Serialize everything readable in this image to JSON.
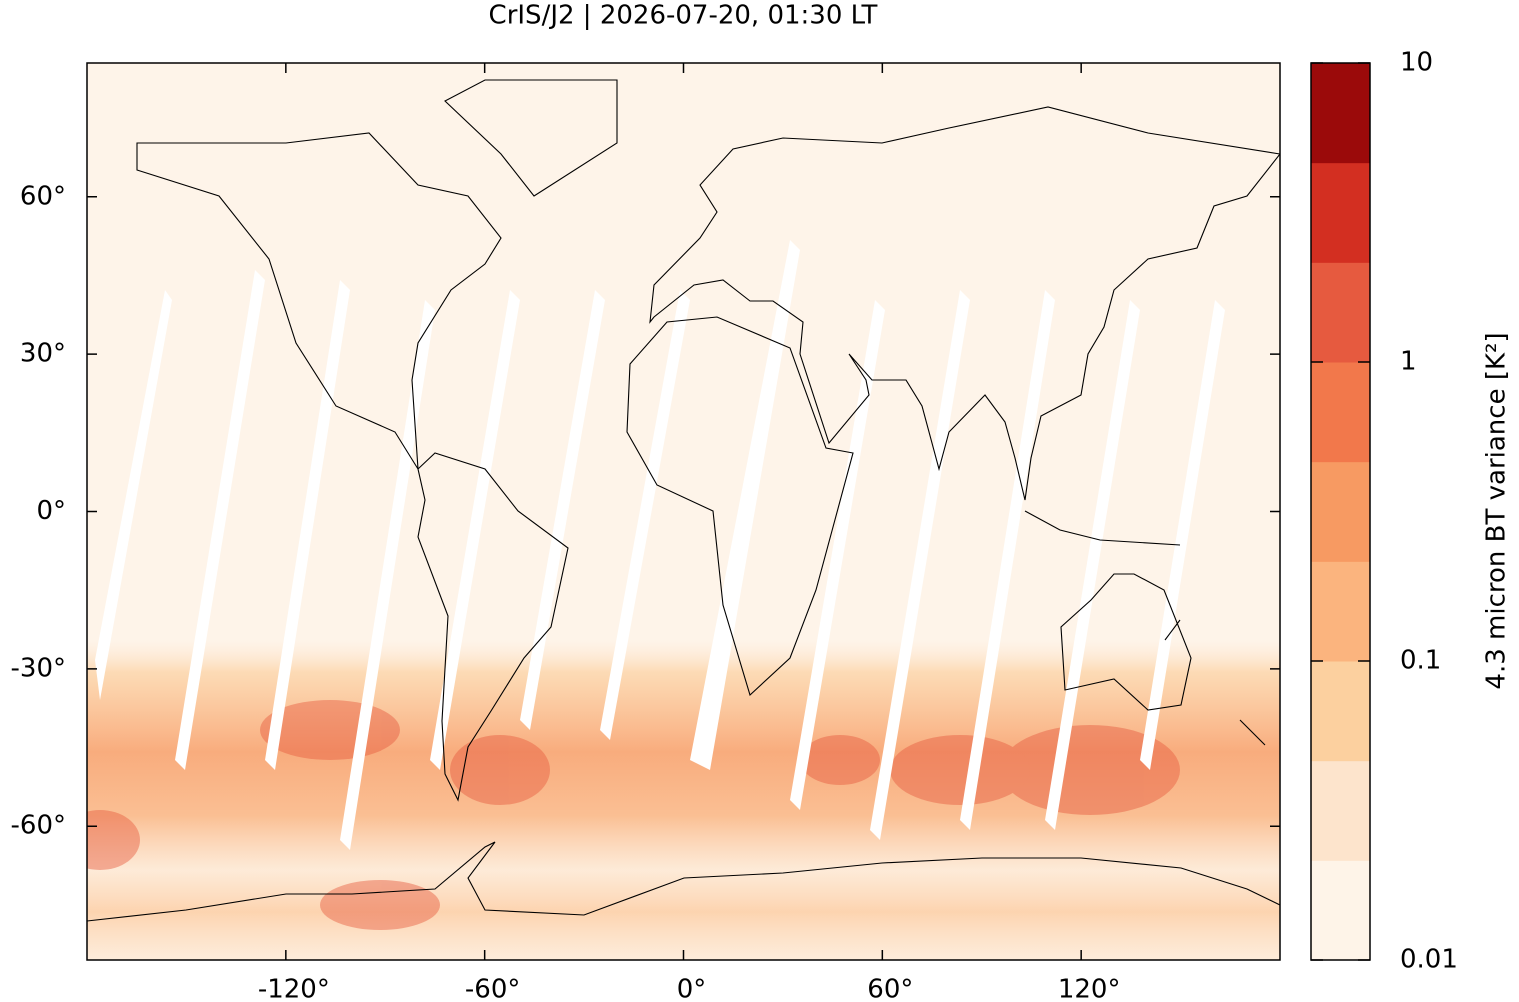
{
  "chart_data": {
    "type": "map",
    "title": "CrIS/J2 | 2026-07-20, 01:30 LT",
    "xlim": [
      -180,
      180
    ],
    "ylim": [
      -85.5,
      85.5
    ],
    "xticks": [
      {
        "value": -120,
        "label": "-120°"
      },
      {
        "value": -60,
        "label": "-60°"
      },
      {
        "value": 0,
        "label": "0°"
      },
      {
        "value": 60,
        "label": "60°"
      },
      {
        "value": 120,
        "label": "120°"
      }
    ],
    "yticks": [
      {
        "value": 60,
        "label": "60°"
      },
      {
        "value": 30,
        "label": "30°"
      },
      {
        "value": 0,
        "label": "0°"
      },
      {
        "value": -30,
        "label": "-30°"
      },
      {
        "value": -60,
        "label": "-60°"
      }
    ],
    "colorbar": {
      "label": "4.3 micron BT variance [K²]",
      "lim": [
        0.01,
        10
      ],
      "ticks": [
        0.01,
        0.1,
        1,
        10
      ],
      "log": true,
      "colors": [
        "#fef4e8",
        "#fde4cc",
        "#fcd09f",
        "#fbb47e",
        "#f79a62",
        "#f2784b",
        "#e65a3f",
        "#d32f21",
        "#9b0a0a"
      ]
    }
  }
}
